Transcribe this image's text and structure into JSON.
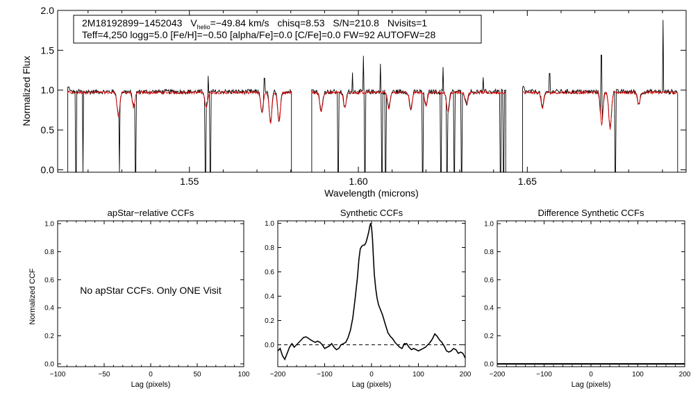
{
  "chart_data": [
    {
      "type": "line",
      "id": "spectrum",
      "title": "",
      "xlabel": "Wavelength (microns)",
      "ylabel": "Normalized Flux",
      "xlim": [
        1.511,
        1.697
      ],
      "ylim": [
        -0.03,
        2.0
      ],
      "xticks": [
        1.55,
        1.6,
        1.65
      ],
      "xtick_labels": [
        "1.55",
        "1.60",
        "1.65"
      ],
      "yticks": [
        0.0,
        0.5,
        1.0,
        1.5,
        2.0
      ],
      "ytick_labels": [
        "0.0",
        "0.5",
        "1.0",
        "1.5",
        "2.0"
      ],
      "info_box": {
        "star": "2M18192899−1452043",
        "vhelio_prefix": "V",
        "vhelio_sub": "helio",
        "vhelio_value": "=−49.84 km/s",
        "chisq": "chisq=8.53",
        "snr": "S/N=210.8",
        "nvisits": "Nvisits=1",
        "params": "Teff=4,250 logg=5.0 [Fe/H]=−0.50 [alpha/Fe]=0.0 [C/Fe]=0.0 FW=92 AUTOFW=28"
      },
      "segments": [
        {
          "name": "blue",
          "range": [
            1.514,
            1.5802
          ]
        },
        {
          "name": "green",
          "range": [
            1.5862,
            1.6436
          ]
        },
        {
          "name": "red",
          "range": [
            1.6486,
            1.6945
          ]
        }
      ],
      "observed_color": "#000000",
      "model_color": "#e00000",
      "continuum_level": 0.98,
      "emission_spikes": [
        {
          "x": 1.5293,
          "y": 1.3
        },
        {
          "x": 1.5555,
          "y": 1.18
        },
        {
          "x": 1.5722,
          "y": 1.15
        },
        {
          "x": 1.5983,
          "y": 1.22
        },
        {
          "x": 1.6015,
          "y": 1.43
        },
        {
          "x": 1.6066,
          "y": 1.33
        },
        {
          "x": 1.625,
          "y": 1.29
        },
        {
          "x": 1.637,
          "y": 1.16
        },
        {
          "x": 1.6566,
          "y": 1.21
        },
        {
          "x": 1.6719,
          "y": 1.44
        },
        {
          "x": 1.6902,
          "y": 1.88
        }
      ],
      "bad_pixel_dropouts": [
        1.5165,
        1.5185,
        1.5293,
        1.534,
        1.5547,
        1.5562,
        1.594,
        1.602,
        1.607,
        1.608,
        1.619,
        1.6245,
        1.6262,
        1.6284,
        1.6305,
        1.642,
        1.643,
        1.676
      ],
      "absorption_features": [
        {
          "x": 1.529,
          "depth": 0.3
        },
        {
          "x": 1.5335,
          "depth": 0.18
        },
        {
          "x": 1.555,
          "depth": 0.18
        },
        {
          "x": 1.5715,
          "depth": 0.25
        },
        {
          "x": 1.574,
          "depth": 0.38
        },
        {
          "x": 1.5765,
          "depth": 0.38
        },
        {
          "x": 1.589,
          "depth": 0.25
        },
        {
          "x": 1.596,
          "depth": 0.2
        },
        {
          "x": 1.609,
          "depth": 0.2
        },
        {
          "x": 1.6155,
          "depth": 0.22
        },
        {
          "x": 1.62,
          "depth": 0.17
        },
        {
          "x": 1.6265,
          "depth": 0.25
        },
        {
          "x": 1.632,
          "depth": 0.15
        },
        {
          "x": 1.6545,
          "depth": 0.2
        },
        {
          "x": 1.672,
          "depth": 0.4
        },
        {
          "x": 1.6745,
          "depth": 0.45
        },
        {
          "x": 1.683,
          "depth": 0.15
        }
      ]
    },
    {
      "type": "line",
      "id": "apstar-ccf",
      "title": "apStar−relative CCFs",
      "xlabel": "Lag (pixels)",
      "ylabel": "Normalized CCF",
      "xlim": [
        -100,
        100
      ],
      "ylim": [
        -0.02,
        1.02
      ],
      "xticks": [
        -100,
        -50,
        0,
        50,
        100
      ],
      "xtick_labels": [
        "−100",
        "−50",
        "0",
        "50",
        "100"
      ],
      "yticks": [
        0.0,
        0.2,
        0.4,
        0.6,
        0.8,
        1.0
      ],
      "ytick_labels": [
        "0.0",
        "0.2",
        "0.4",
        "0.6",
        "0.8",
        "1.0"
      ],
      "annotation": "No apStar CCFs.  Only ONE Visit",
      "series": []
    },
    {
      "type": "line",
      "id": "synthetic-ccf",
      "title": "Synthetic CCFs",
      "xlabel": "Lag (pixels)",
      "ylabel": "",
      "xlim": [
        -200,
        200
      ],
      "ylim": [
        -0.18,
        1.02
      ],
      "xticks": [
        -200,
        -100,
        0,
        100,
        200
      ],
      "xtick_labels": [
        "−200",
        "−100",
        "0",
        "100",
        "200"
      ],
      "yticks": [
        0.0,
        0.2,
        0.4,
        0.6,
        0.8,
        1.0
      ],
      "ytick_labels": [
        "0.0",
        "0.2",
        "0.4",
        "0.6",
        "0.8",
        "1.0"
      ],
      "zero_line": 0.0,
      "series": [
        {
          "x": [
            -200,
            -195,
            -190,
            -185,
            -180,
            -175,
            -170,
            -165,
            -160,
            -155,
            -150,
            -145,
            -140,
            -135,
            -130,
            -125,
            -120,
            -115,
            -110,
            -105,
            -100,
            -95,
            -90,
            -85,
            -80,
            -75,
            -70,
            -65,
            -60,
            -55,
            -50,
            -45,
            -40,
            -35,
            -30,
            -27,
            -24,
            -21,
            -18,
            -15,
            -12,
            -9,
            -6,
            -4,
            -2,
            0,
            2,
            4,
            6,
            9,
            12,
            15,
            18,
            21,
            24,
            27,
            30,
            35,
            40,
            45,
            50,
            55,
            60,
            65,
            70,
            75,
            80,
            85,
            90,
            95,
            100,
            105,
            110,
            115,
            120,
            125,
            130,
            135,
            140,
            145,
            150,
            155,
            160,
            165,
            170,
            175,
            180,
            185,
            190,
            195,
            200
          ],
          "y": [
            -0.05,
            -0.03,
            -0.09,
            -0.12,
            -0.07,
            -0.02,
            0.01,
            -0.02,
            0.0,
            0.02,
            0.04,
            0.06,
            0.065,
            0.055,
            0.04,
            0.03,
            0.02,
            0.03,
            0.02,
            0.0,
            -0.03,
            -0.02,
            -0.01,
            0.01,
            -0.02,
            -0.04,
            -0.03,
            0.0,
            0.01,
            0.02,
            0.06,
            0.12,
            0.22,
            0.38,
            0.56,
            0.7,
            0.79,
            0.81,
            0.82,
            0.82,
            0.84,
            0.88,
            0.93,
            0.97,
            1.0,
            0.97,
            0.87,
            0.72,
            0.58,
            0.46,
            0.38,
            0.33,
            0.3,
            0.27,
            0.24,
            0.2,
            0.16,
            0.1,
            0.07,
            0.05,
            0.02,
            0.0,
            -0.02,
            -0.03,
            0.01,
            0.01,
            -0.02,
            -0.04,
            -0.03,
            -0.04,
            -0.05,
            -0.04,
            -0.03,
            -0.02,
            0.0,
            0.02,
            0.05,
            0.09,
            0.07,
            0.04,
            0.02,
            -0.01,
            -0.05,
            -0.06,
            -0.05,
            -0.03,
            -0.04,
            -0.07,
            -0.06,
            -0.07,
            -0.11
          ]
        }
      ]
    },
    {
      "type": "line",
      "id": "difference-ccf",
      "title": "Difference Synthetic CCFs",
      "xlabel": "Lag (pixels)",
      "ylabel": "",
      "xlim": [
        -200,
        200
      ],
      "ylim": [
        -0.02,
        1.02
      ],
      "xticks": [
        -200,
        -100,
        0,
        100,
        200
      ],
      "xtick_labels": [
        "−200",
        "−100",
        "0",
        "100",
        "200"
      ],
      "yticks": [
        0.0,
        0.2,
        0.4,
        0.6,
        0.8,
        1.0
      ],
      "ytick_labels": [
        "0.0",
        "0.2",
        "0.4",
        "0.6",
        "0.8",
        "1.0"
      ],
      "series": [
        {
          "x": [
            -200,
            200
          ],
          "y": [
            0.0,
            0.0
          ]
        }
      ]
    }
  ]
}
